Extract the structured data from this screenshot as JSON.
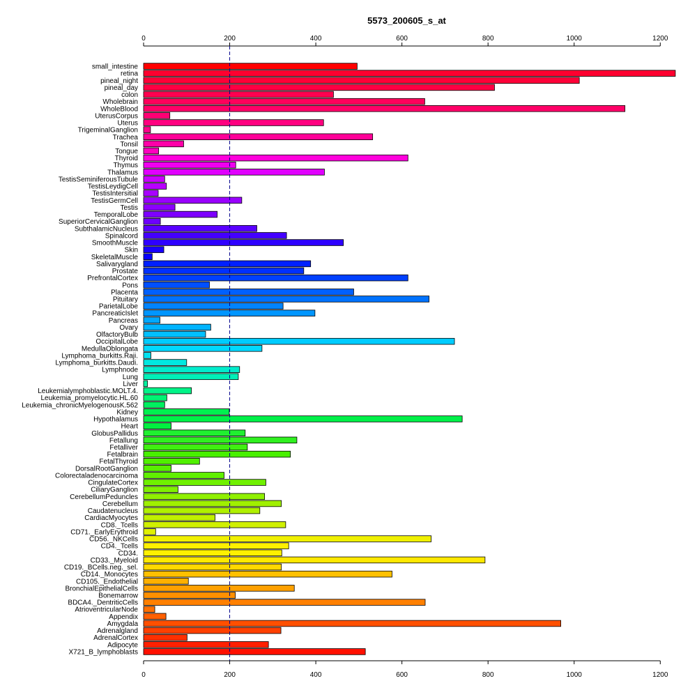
{
  "chart_data": {
    "type": "bar",
    "orientation": "horizontal",
    "title": "5573_200605_s_at",
    "xlim": [
      0,
      1240
    ],
    "x_ticks": [
      0,
      200,
      400,
      600,
      800,
      1000,
      1200
    ],
    "reference_line": 200,
    "grid": false,
    "categories": [
      "small_intestine",
      "retina",
      "pineal_night",
      "pineal_day",
      "colon",
      "Wholebrain",
      "WholeBlood",
      "UterusCorpus",
      "Uterus",
      "TrigeminalGanglion",
      "Trachea",
      "Tonsil",
      "Tongue",
      "Thyroid",
      "Thymus",
      "Thalamus",
      "TestisSeminiferousTubule",
      "TestisLeydigCell",
      "TestisIntersitial",
      "TestisGermCell",
      "Testis",
      "TemporalLobe",
      "SuperiorCervicalGanglion",
      "SubthalamicNucleus",
      "Spinalcord",
      "SmoothMuscle",
      "Skin",
      "SkeletalMuscle",
      "Salivarygland",
      "Prostate",
      "PrefrontalCortex",
      "Pons",
      "Placenta",
      "Pituitary",
      "ParietalLobe",
      "PancreaticIslet",
      "Pancreas",
      "Ovary",
      "OlfactoryBulb",
      "OccipitalLobe",
      "MedullaOblongata",
      "Lymphoma_burkitts.Raji.",
      "Lymphoma_burkitts.Daudi.",
      "Lymphnode",
      "Lung",
      "Liver",
      "Leukemialymphoblastic.MOLT.4.",
      "Leukemia_promyelocytic.HL.60",
      "Leukemia_chronicMyelogenousK.562",
      "Kidney",
      "Hypothalamus",
      "Heart",
      "GlobusPallidus",
      "Fetallung",
      "Fetalliver",
      "Fetalbrain",
      "FetalThyroid",
      "DorsalRootGanglion",
      "Colorectaladenocarcinoma",
      "CingulateCortex",
      "CiliaryGanglion",
      "CerebellumPeduncles",
      "Cerebellum",
      "Caudatenucleus",
      "CardiacMyocytes",
      "CD8._Tcells",
      "CD71._EarlyErythroid",
      "CD56._NKCells",
      "CD4._Tcells",
      "CD34.",
      "CD33._Myeloid",
      "CD19._BCells.neg._sel.",
      "CD14._Monocytes",
      "CD105._Endothelial",
      "BronchialEpithelialCells",
      "Bonemarrow",
      "BDCA4._DentriticCells",
      "AtrioventricularNode",
      "Appendix",
      "Amygdala",
      "Adrenalgland",
      "AdrenalCortex",
      "Adipocyte",
      "X721_B_lymphoblasts"
    ],
    "values": [
      496,
      1235,
      1012,
      815,
      441,
      653,
      1118,
      61,
      418,
      16,
      532,
      93,
      35,
      614,
      214,
      420,
      49,
      53,
      34,
      228,
      73,
      171,
      39,
      263,
      332,
      464,
      47,
      20,
      388,
      372,
      614,
      153,
      488,
      663,
      324,
      398,
      38,
      156,
      144,
      722,
      275,
      17,
      100,
      223,
      220,
      9,
      111,
      54,
      49,
      199,
      740,
      64,
      236,
      356,
      241,
      341,
      130,
      64,
      187,
      284,
      80,
      281,
      320,
      270,
      166,
      330,
      28,
      668,
      337,
      321,
      793,
      320,
      577,
      104,
      350,
      213,
      654,
      26,
      52,
      969,
      319,
      101,
      290,
      515
    ],
    "colors": [
      "#FF0000",
      "#FF0030",
      "#FF0038",
      "#FF0044",
      "#FF0050",
      "#FF005C",
      "#FF0068",
      "#FF0074",
      "#FF0080",
      "#FF008C",
      "#FF0098",
      "#FF00A8",
      "#FF00BF",
      "#FF00DC",
      "#F000F0",
      "#E000FF",
      "#C800FF",
      "#B800FF",
      "#A800FF",
      "#9A00FF",
      "#8C00FF",
      "#7E00FF",
      "#6E00FF",
      "#5A00FF",
      "#4400FF",
      "#2E00FF",
      "#1800FF",
      "#0800FF",
      "#0020FF",
      "#0030FF",
      "#0040FF",
      "#0050FF",
      "#0060FF",
      "#0072FF",
      "#0084FF",
      "#0096FF",
      "#00A8FF",
      "#00B4FF",
      "#00C0FF",
      "#00CCFF",
      "#00D8FF",
      "#00E2F0",
      "#00E8E0",
      "#00ECCC",
      "#00F0B8",
      "#00F2A0",
      "#00F488",
      "#00F474",
      "#00F060",
      "#00F050",
      "#00F048",
      "#00F040",
      "#20F030",
      "#30F020",
      "#40F010",
      "#48F000",
      "#50F000",
      "#58F000",
      "#60F000",
      "#70F000",
      "#80F000",
      "#90F000",
      "#A0F000",
      "#B0F000",
      "#C0F000",
      "#D0F000",
      "#E0F000",
      "#F0F000",
      "#FFF000",
      "#FFF000",
      "#FFE800",
      "#FFD800",
      "#FFC000",
      "#FFB000",
      "#FFA000",
      "#FF9000",
      "#FF8000",
      "#FF7000",
      "#FF6000",
      "#FF5000",
      "#FF4000",
      "#FF3000",
      "#FF2000",
      "#FF1000"
    ]
  }
}
